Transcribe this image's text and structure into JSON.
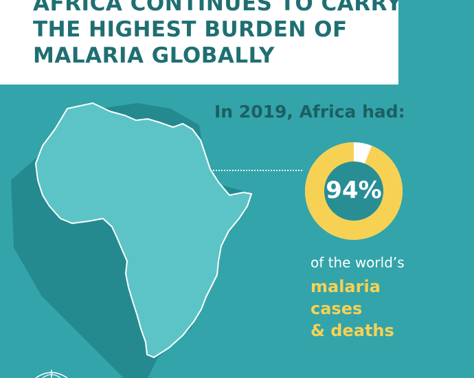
{
  "header": {
    "title_lines": [
      "AFRICA CONTINUES TO CARRY",
      "THE HIGHEST BURDEN OF",
      "MALARIA GLOBALLY"
    ]
  },
  "stats": {
    "intro": "In 2019, Africa had:",
    "percent_label": "94%",
    "percent_value": 94,
    "caption": "of the world’s",
    "highlight_lines": [
      "malaria",
      "cases",
      "& deaths"
    ]
  },
  "colors": {
    "background": "#33a4aa",
    "headline_text": "#1f6f72",
    "map_fill": "#5cc4c6",
    "map_shadow": "#248a8f",
    "donut_fill": "#f7d154",
    "donut_remainder": "#ffffff",
    "donut_center": "#288e93",
    "highlight_text": "#f7d154"
  },
  "icons": {
    "map": "africa-map",
    "logo": "who-emblem-icon"
  }
}
